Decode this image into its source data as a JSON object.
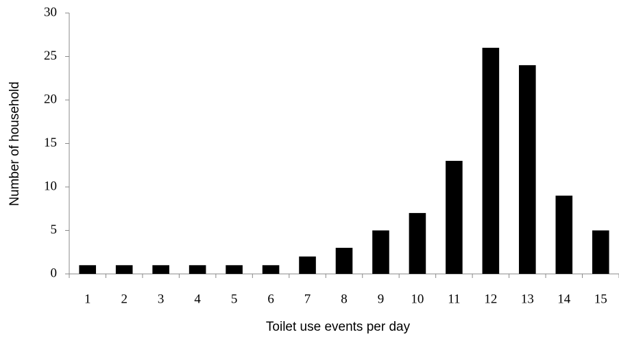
{
  "chart_data": {
    "type": "bar",
    "x_label": "Toilet use events per day",
    "y_label": "Number of household",
    "categories": [
      "1",
      "2",
      "3",
      "4",
      "5",
      "6",
      "7",
      "8",
      "9",
      "10",
      "11",
      "12",
      "13",
      "14",
      "15"
    ],
    "values": [
      1,
      1,
      1,
      1,
      1,
      1,
      2,
      3,
      5,
      7,
      13,
      26,
      24,
      9,
      5
    ],
    "color": "#000000",
    "ylim": [
      0,
      30
    ],
    "yticks": [
      0,
      5,
      10,
      15,
      20,
      25,
      30
    ],
    "grid": false
  }
}
